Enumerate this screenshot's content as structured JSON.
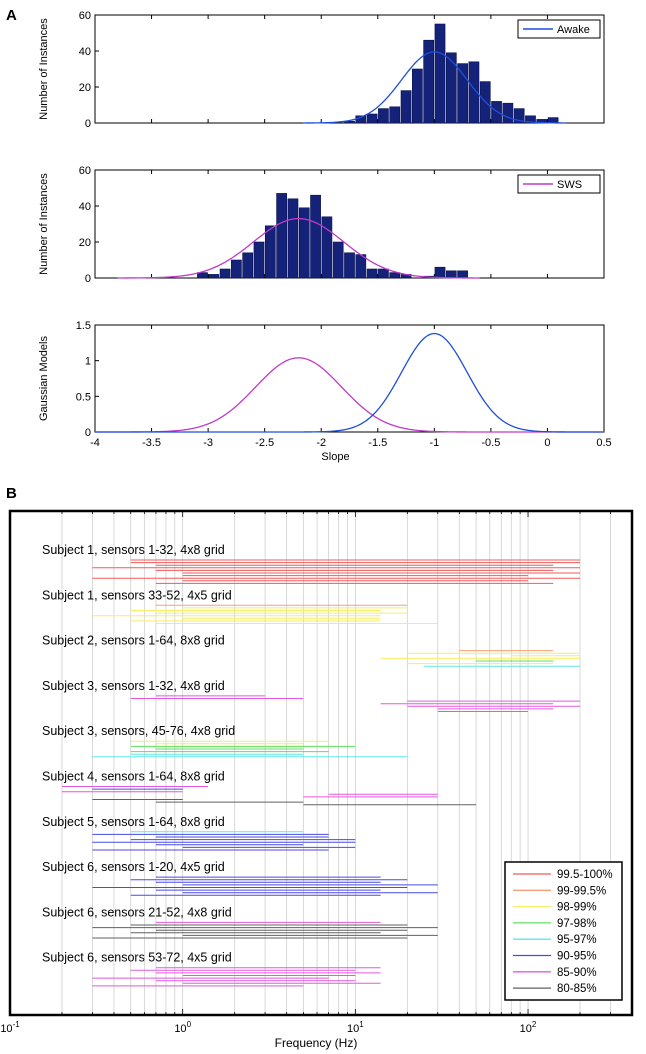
{
  "panel_labels": [
    "A",
    "B"
  ],
  "chart_data": [
    {
      "type": "bar",
      "title": "",
      "xlabel": "",
      "ylabel": "Number of Instances",
      "xlim": [
        -4,
        0.5
      ],
      "ylim": [
        0,
        60
      ],
      "yticks": [
        "0",
        "20",
        "40",
        "60"
      ],
      "legend": {
        "label": "Awake",
        "position": "top-right"
      },
      "bin_width": 0.1,
      "bars": [
        {
          "x": -1.75,
          "y": 1
        },
        {
          "x": -1.65,
          "y": 4
        },
        {
          "x": -1.55,
          "y": 5
        },
        {
          "x": -1.45,
          "y": 8
        },
        {
          "x": -1.35,
          "y": 9
        },
        {
          "x": -1.25,
          "y": 18
        },
        {
          "x": -1.15,
          "y": 30
        },
        {
          "x": -1.05,
          "y": 46
        },
        {
          "x": -0.95,
          "y": 55
        },
        {
          "x": -0.85,
          "y": 39
        },
        {
          "x": -0.75,
          "y": 33
        },
        {
          "x": -0.65,
          "y": 34
        },
        {
          "x": -0.55,
          "y": 23
        },
        {
          "x": -0.45,
          "y": 12
        },
        {
          "x": -0.35,
          "y": 11
        },
        {
          "x": -0.25,
          "y": 8
        },
        {
          "x": -0.15,
          "y": 4
        },
        {
          "x": -0.05,
          "y": 2
        },
        {
          "x": 0.05,
          "y": 3
        }
      ],
      "fit": {
        "color": "#1f4fd8",
        "mean": -1.0,
        "sd": 0.29,
        "peak": 39.5
      }
    },
    {
      "type": "bar",
      "title": "",
      "xlabel": "",
      "ylabel": "Number of Instances",
      "xlim": [
        -4,
        0.5
      ],
      "ylim": [
        0,
        60
      ],
      "yticks": [
        "0",
        "20",
        "40",
        "60"
      ],
      "legend": {
        "label": "SWS",
        "position": "top-right"
      },
      "bin_width": 0.1,
      "bars": [
        {
          "x": -3.05,
          "y": 3
        },
        {
          "x": -2.95,
          "y": 2
        },
        {
          "x": -2.85,
          "y": 5
        },
        {
          "x": -2.75,
          "y": 10
        },
        {
          "x": -2.65,
          "y": 14
        },
        {
          "x": -2.55,
          "y": 20
        },
        {
          "x": -2.45,
          "y": 29
        },
        {
          "x": -2.35,
          "y": 47
        },
        {
          "x": -2.25,
          "y": 44
        },
        {
          "x": -2.15,
          "y": 39
        },
        {
          "x": -2.05,
          "y": 46
        },
        {
          "x": -1.95,
          "y": 34
        },
        {
          "x": -1.85,
          "y": 20
        },
        {
          "x": -1.75,
          "y": 14
        },
        {
          "x": -1.65,
          "y": 13
        },
        {
          "x": -1.55,
          "y": 5
        },
        {
          "x": -1.45,
          "y": 5
        },
        {
          "x": -1.35,
          "y": 3
        },
        {
          "x": -1.25,
          "y": 2
        },
        {
          "x": -1.05,
          "y": 1
        },
        {
          "x": -0.95,
          "y": 6
        },
        {
          "x": -0.85,
          "y": 4
        },
        {
          "x": -0.75,
          "y": 4
        }
      ],
      "fit": {
        "color": "#c03ac8",
        "mean": -2.2,
        "sd": 0.4,
        "peak": 33
      }
    },
    {
      "type": "line",
      "title": "",
      "xlabel": "Slope",
      "ylabel": "Gaussian Models",
      "xlim": [
        -4,
        0.5
      ],
      "ylim": [
        0,
        1.5
      ],
      "xticks": [
        "-4",
        "-3.5",
        "-3",
        "-2.5",
        "-2",
        "-1.5",
        "-1",
        "-0.5",
        "0",
        "0.5"
      ],
      "yticks": [
        "0",
        "0.5",
        "1",
        "1.5"
      ],
      "series": [
        {
          "name": "SWS",
          "color": "#c03ac8",
          "mean": -2.2,
          "sd": 0.38,
          "peak": 1.04
        },
        {
          "name": "Awake",
          "color": "#1f4fd8",
          "mean": -1.0,
          "sd": 0.29,
          "peak": 1.38
        }
      ]
    },
    {
      "type": "range",
      "title": "",
      "xlabel": "Frequency (Hz)",
      "ylabel": "",
      "xscale": "log",
      "xlim": [
        0.1,
        400
      ],
      "xtick_values": [
        0.1,
        1,
        10,
        100
      ],
      "xtick_exponents": [
        "-1",
        "0",
        "1",
        "2"
      ],
      "tick_base": "10",
      "legend": {
        "position": "bottom-right",
        "entries": [
          {
            "label": "99.5-100%",
            "color": "#f25a5a"
          },
          {
            "label": "99-99.5%",
            "color": "#f7a078"
          },
          {
            "label": "98-99%",
            "color": "#f4ee6a"
          },
          {
            "label": "97-98%",
            "color": "#5ee05e"
          },
          {
            "label": "95-97%",
            "color": "#5ee8ee"
          },
          {
            "label": "90-95%",
            "color": "#4a4ae6"
          },
          {
            "label": "85-90%",
            "color": "#e258e2"
          },
          {
            "label": "80-85%",
            "color": "#606060"
          }
        ]
      },
      "groups": [
        {
          "label": "Subject 1, sensors 1-32, 4x8 grid",
          "ranges": [
            [
              0.5,
              200,
              0
            ],
            [
              0.5,
              200,
              0
            ],
            [
              0.7,
              140,
              0
            ],
            [
              0.3,
              200,
              0
            ],
            [
              0.7,
              140,
              0
            ],
            [
              1.0,
              200,
              0
            ],
            [
              1.0,
              100,
              0
            ],
            [
              0.3,
              200,
              0
            ],
            [
              1.0,
              100,
              0
            ],
            [
              0.7,
              140,
              0
            ]
          ]
        },
        {
          "label": "Subject 1, sensors 33-52, 4x5 grid",
          "ranges": [
            [
              0.7,
              20,
              1
            ],
            [
              1.0,
              20,
              2
            ],
            [
              0.5,
              14,
              2
            ],
            [
              0.7,
              20,
              2
            ],
            [
              0.3,
              14,
              2
            ],
            [
              1.0,
              14,
              2
            ],
            [
              0.5,
              14,
              2
            ],
            [
              0.7,
              30,
              2
            ]
          ]
        },
        {
          "label": "Subject 2, sensors 1-64, 8x8 grid",
          "ranges": [
            [
              40,
              140,
              1
            ],
            [
              20,
              200,
              2
            ],
            [
              80,
              200,
              2
            ],
            [
              14,
              200,
              2
            ],
            [
              50,
              140,
              3
            ],
            [
              20,
              140,
              2
            ],
            [
              25,
              200,
              4
            ]
          ]
        },
        {
          "label": "Subject 3, sensors 1-32, 4x8 grid",
          "ranges": [
            [
              0.7,
              3,
              6
            ],
            [
              0.5,
              5,
              6
            ],
            [
              20,
              200,
              6
            ],
            [
              14,
              140,
              6
            ],
            [
              20,
              200,
              6
            ],
            [
              30,
              140,
              6
            ],
            [
              30,
              100,
              6
            ]
          ]
        },
        {
          "label": "Subject 3, sensors, 45-76, 4x8 grid",
          "ranges": [
            [
              0.5,
              7,
              2
            ],
            [
              0.7,
              5,
              2
            ],
            [
              0.5,
              10,
              3
            ],
            [
              0.7,
              5,
              3
            ],
            [
              0.5,
              7,
              3
            ],
            [
              0.5,
              5,
              4
            ],
            [
              0.3,
              20,
              4
            ]
          ]
        },
        {
          "label": "Subject 4, sensors 1-64, 8x8 grid",
          "ranges": [
            [
              0.2,
              1.4,
              6
            ],
            [
              0.3,
              1.0,
              5
            ],
            [
              0.2,
              1.0,
              6
            ],
            [
              7,
              30,
              6
            ],
            [
              5,
              30,
              6
            ],
            [
              0.3,
              1.0,
              7
            ],
            [
              0.7,
              5,
              7
            ],
            [
              5,
              50,
              7
            ]
          ]
        },
        {
          "label": "Subject 5, sensors 1-64, 8x8 grid",
          "ranges": [
            [
              0.5,
              5,
              4
            ],
            [
              0.3,
              7,
              5
            ],
            [
              0.7,
              7,
              5
            ],
            [
              0.5,
              10,
              5
            ],
            [
              0.3,
              10,
              5
            ],
            [
              0.7,
              5,
              5
            ],
            [
              1.0,
              10,
              5
            ],
            [
              0.3,
              7,
              5
            ]
          ]
        },
        {
          "label": "Subject 6, sensors 1-20, 4x5 grid",
          "ranges": [
            [
              0.7,
              14,
              5
            ],
            [
              0.5,
              20,
              5
            ],
            [
              0.7,
              14,
              5
            ],
            [
              1.0,
              30,
              5
            ],
            [
              0.3,
              20,
              5
            ],
            [
              0.7,
              14,
              5
            ],
            [
              1.0,
              30,
              5
            ],
            [
              0.5,
              14,
              5
            ]
          ]
        },
        {
          "label": "Subject 6, sensors 21-52, 4x8 grid",
          "ranges": [
            [
              0.7,
              14,
              6
            ],
            [
              0.5,
              20,
              7
            ],
            [
              0.3,
              30,
              7
            ],
            [
              0.7,
              20,
              7
            ],
            [
              0.5,
              14,
              7
            ],
            [
              1.0,
              30,
              7
            ],
            [
              0.3,
              20,
              7
            ]
          ]
        },
        {
          "label": "Subject 6, sensors 53-72, 4x5 grid",
          "ranges": [
            [
              0.7,
              14,
              6
            ],
            [
              0.5,
              10,
              6
            ],
            [
              0.7,
              14,
              6
            ],
            [
              1.0,
              10,
              6
            ],
            [
              0.3,
              7,
              6
            ],
            [
              0.7,
              10,
              6
            ],
            [
              1.0,
              14,
              6
            ],
            [
              0.3,
              5,
              6
            ]
          ]
        }
      ]
    }
  ]
}
